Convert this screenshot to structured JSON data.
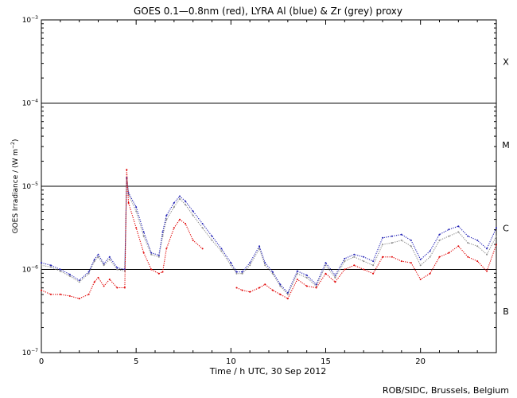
{
  "chart_data": {
    "type": "scatter",
    "title": "GOES 0.1—0.8nm (red), LYRA Al (blue) & Zr (grey) proxy",
    "xlabel": "Time / h UTC, 30 Sep 2012",
    "ylabel_main": "GOES Irradiance / (W m",
    "ylabel_sup": "−2",
    "ylabel_close": ")",
    "credit": "ROB/SIDC, Brussels, Belgium",
    "xlim": [
      0,
      24
    ],
    "ylim_log10": [
      -7,
      -3
    ],
    "x_ticks": [
      {
        "v": 0,
        "label": "0"
      },
      {
        "v": 5,
        "label": "5"
      },
      {
        "v": 10,
        "label": "10"
      },
      {
        "v": 15,
        "label": "15"
      },
      {
        "v": 20,
        "label": "20"
      }
    ],
    "y_ticks": [
      {
        "exp": -3,
        "base": "10",
        "sup": "−3"
      },
      {
        "exp": -4,
        "base": "10",
        "sup": "−4"
      },
      {
        "exp": -5,
        "base": "10",
        "sup": "−5"
      },
      {
        "exp": -6,
        "base": "10",
        "sup": "−6"
      },
      {
        "exp": -7,
        "base": "10",
        "sup": "−7"
      }
    ],
    "flare_class_lines": [
      -4,
      -5,
      -6
    ],
    "flare_classes": [
      {
        "label": "X",
        "at": -3.5
      },
      {
        "label": "M",
        "at": -4.5
      },
      {
        "label": "C",
        "at": -5.5
      },
      {
        "label": "B",
        "at": -6.5
      }
    ],
    "series": [
      {
        "name": "LYRA Zr proxy (grey)",
        "color": "#8c8c8c",
        "x": [
          0,
          0.5,
          1,
          1.5,
          2,
          2.5,
          2.8,
          3,
          3.3,
          3.6,
          4,
          4.4,
          4.5,
          4.6,
          5,
          5.4,
          5.8,
          6.2,
          6.4,
          6.6,
          7,
          7.3,
          7.6,
          8,
          8.5,
          9,
          9.5,
          10,
          10.3,
          10.6,
          11,
          11.5,
          11.8,
          12.2,
          12.6,
          13,
          13.5,
          14,
          14.5,
          15,
          15.5,
          16,
          16.5,
          17,
          17.5,
          18,
          18.5,
          19,
          19.5,
          20,
          20.5,
          21,
          21.5,
          22,
          22.5,
          23,
          23.5,
          24
        ],
        "y": [
          -5.95,
          -5.97,
          -6.02,
          -6.08,
          -6.15,
          -6.05,
          -5.9,
          -5.85,
          -5.95,
          -5.88,
          -6.0,
          -6.02,
          -4.9,
          -5.1,
          -5.3,
          -5.6,
          -5.82,
          -5.85,
          -5.6,
          -5.4,
          -5.25,
          -5.15,
          -5.22,
          -5.35,
          -5.5,
          -5.65,
          -5.78,
          -5.95,
          -6.05,
          -6.05,
          -5.95,
          -5.75,
          -5.95,
          -6.05,
          -6.2,
          -6.3,
          -6.05,
          -6.1,
          -6.2,
          -5.95,
          -6.1,
          -5.9,
          -5.85,
          -5.9,
          -5.95,
          -5.7,
          -5.68,
          -5.65,
          -5.72,
          -5.95,
          -5.85,
          -5.65,
          -5.6,
          -5.55,
          -5.68,
          -5.72,
          -5.82,
          -5.6
        ]
      },
      {
        "name": "LYRA Al (blue)",
        "color": "#1f1fb4",
        "x": [
          0,
          0.5,
          1,
          1.5,
          2,
          2.5,
          2.8,
          3,
          3.3,
          3.6,
          4,
          4.4,
          4.5,
          4.6,
          5,
          5.4,
          5.8,
          6.2,
          6.4,
          6.6,
          7,
          7.3,
          7.6,
          8,
          8.5,
          9,
          9.5,
          10,
          10.3,
          10.6,
          11,
          11.5,
          11.8,
          12.2,
          12.6,
          13,
          13.5,
          14,
          14.5,
          15,
          15.5,
          16,
          16.5,
          17,
          17.5,
          18,
          18.5,
          19,
          19.5,
          20,
          20.5,
          21,
          21.5,
          22,
          22.5,
          23,
          23.5,
          24
        ],
        "y": [
          -5.92,
          -5.95,
          -6.0,
          -6.06,
          -6.13,
          -6.03,
          -5.88,
          -5.82,
          -5.93,
          -5.85,
          -5.98,
          -6.0,
          -4.9,
          -5.08,
          -5.25,
          -5.55,
          -5.8,
          -5.83,
          -5.55,
          -5.35,
          -5.2,
          -5.12,
          -5.18,
          -5.3,
          -5.45,
          -5.6,
          -5.75,
          -5.92,
          -6.03,
          -6.03,
          -5.92,
          -5.72,
          -5.92,
          -6.03,
          -6.18,
          -6.28,
          -6.02,
          -6.07,
          -6.18,
          -5.92,
          -6.07,
          -5.87,
          -5.82,
          -5.85,
          -5.9,
          -5.62,
          -5.6,
          -5.58,
          -5.65,
          -5.88,
          -5.78,
          -5.58,
          -5.52,
          -5.48,
          -5.6,
          -5.65,
          -5.75,
          -5.5
        ]
      },
      {
        "name": "GOES 0.1-0.8nm (red)",
        "color": "#e00000",
        "x": [
          0,
          0.5,
          1,
          1.5,
          2,
          2.5,
          2.8,
          3,
          3.3,
          3.6,
          4,
          4.4,
          4.5,
          4.6,
          5,
          5.4,
          5.8,
          6.2,
          6.4,
          6.6,
          7,
          7.3,
          7.6,
          8,
          8.5,
          10.3,
          10.6,
          11,
          11.5,
          11.8,
          12.2,
          12.6,
          13,
          13.5,
          14,
          14.5,
          15,
          15.5,
          16,
          16.5,
          17,
          17.5,
          18,
          18.5,
          19,
          19.5,
          20,
          20.5,
          21,
          21.5,
          22,
          22.5,
          23,
          23.5,
          24
        ],
        "y": [
          -6.25,
          -6.3,
          -6.3,
          -6.32,
          -6.35,
          -6.3,
          -6.15,
          -6.1,
          -6.2,
          -6.12,
          -6.22,
          -6.22,
          -4.8,
          -5.2,
          -5.5,
          -5.8,
          -6.0,
          -6.05,
          -6.03,
          -5.75,
          -5.5,
          -5.4,
          -5.45,
          -5.65,
          -5.75,
          -6.22,
          -6.25,
          -6.27,
          -6.22,
          -6.18,
          -6.25,
          -6.3,
          -6.35,
          -6.12,
          -6.2,
          -6.22,
          -6.05,
          -6.15,
          -6.0,
          -5.95,
          -6.0,
          -6.05,
          -5.85,
          -5.85,
          -5.9,
          -5.92,
          -6.12,
          -6.05,
          -5.85,
          -5.8,
          -5.72,
          -5.85,
          -5.9,
          -6.02,
          -5.7
        ]
      }
    ]
  }
}
